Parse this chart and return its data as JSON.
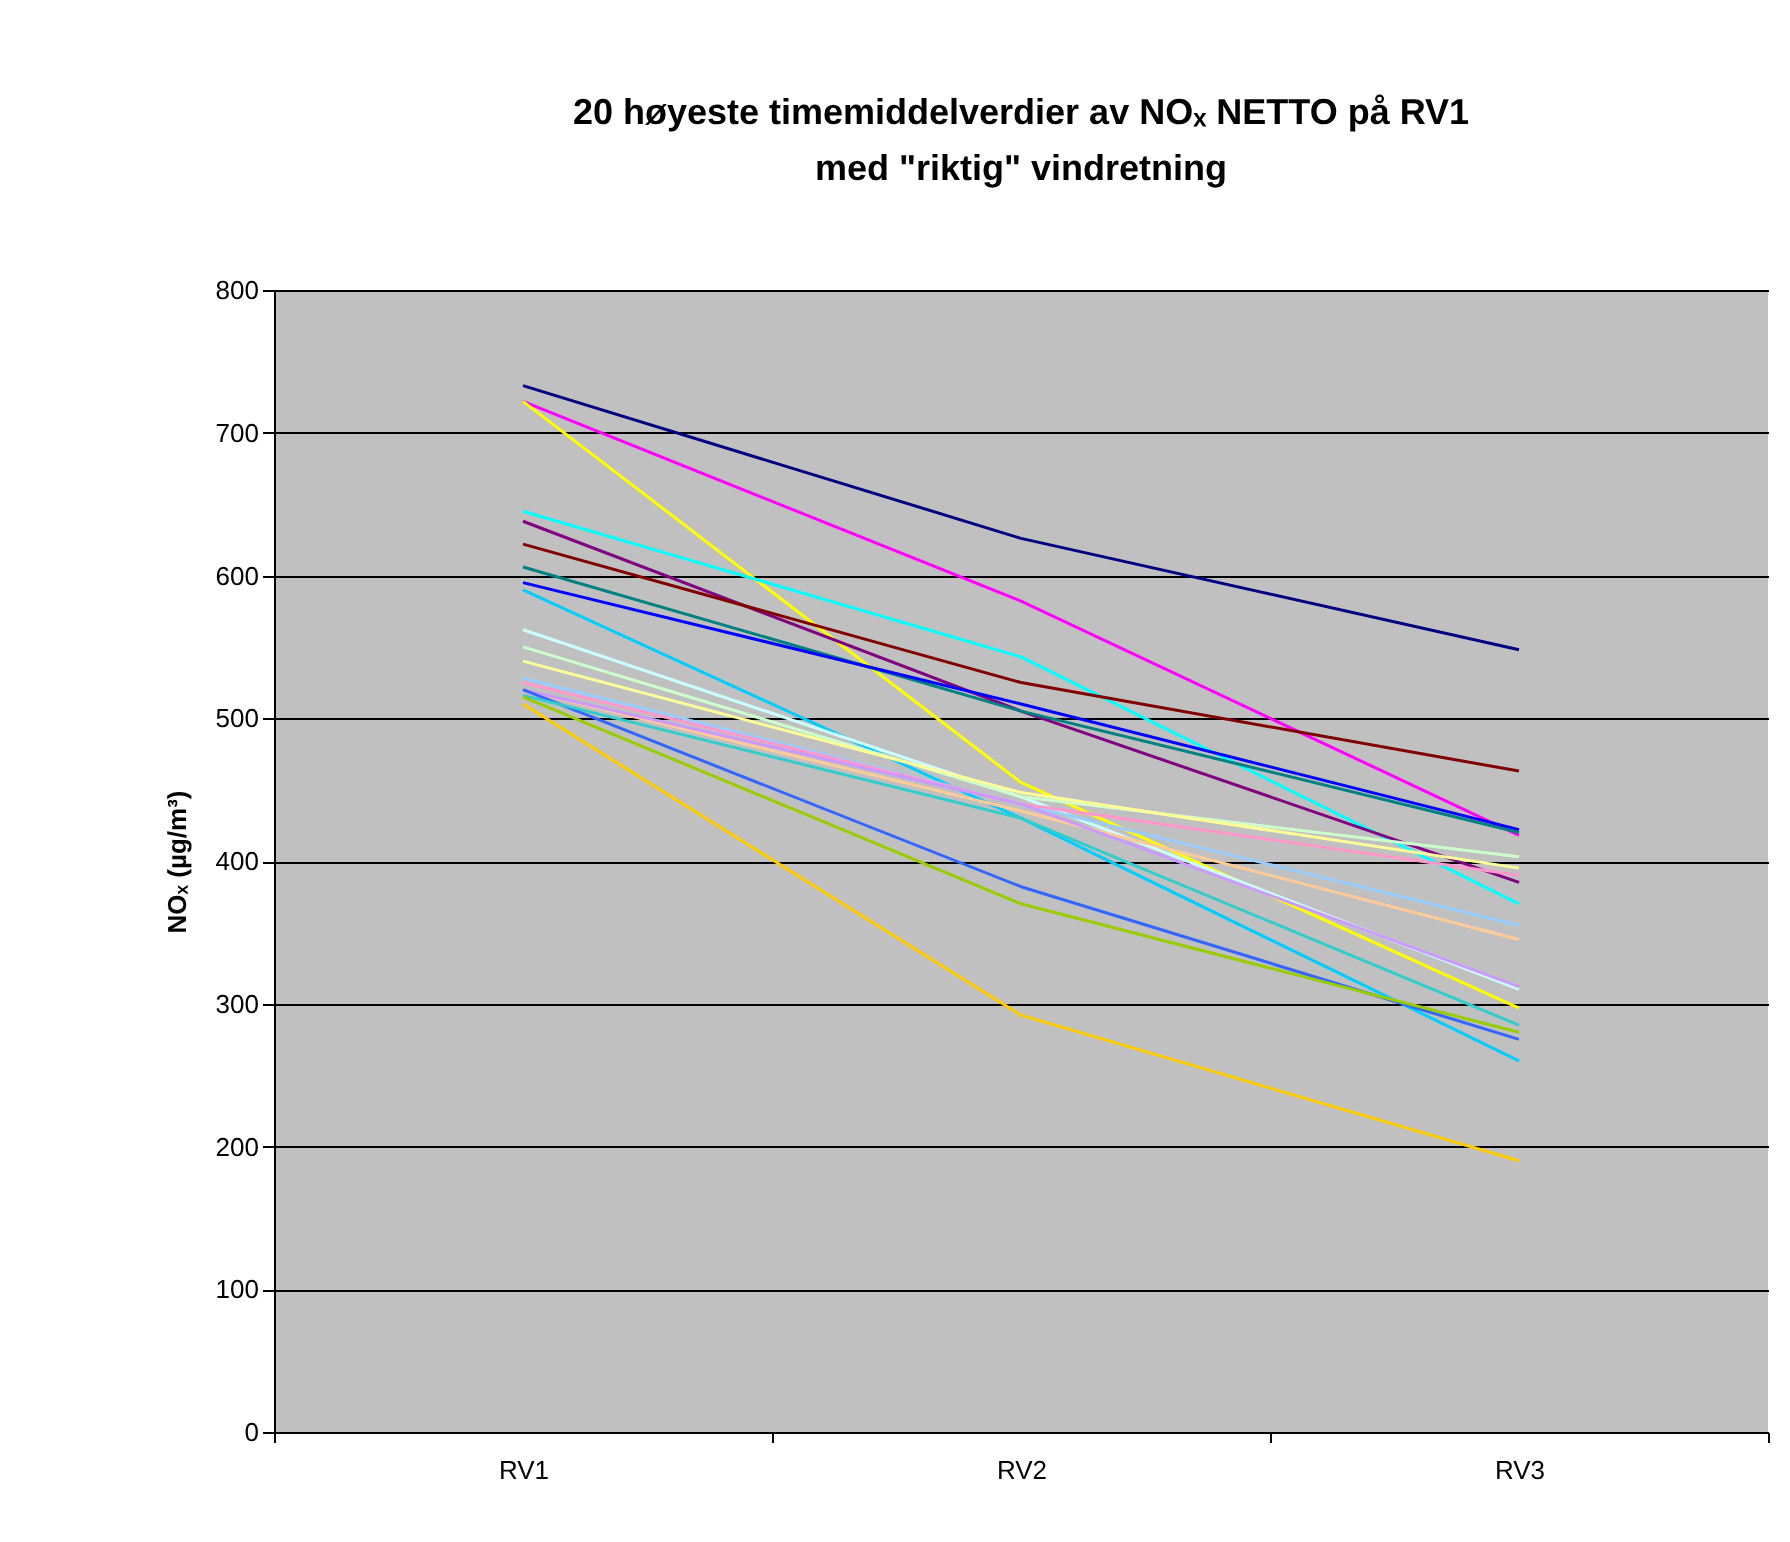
{
  "chart_data": {
    "type": "line",
    "title": "20 høyeste timemiddelverdier av NOₓ NETTO på RV1 med \"riktig\" vindretning",
    "ylabel": "NOₓ (µg/m³)",
    "categories": [
      "RV1",
      "RV2",
      "RV3"
    ],
    "ylim": [
      0,
      800
    ],
    "yticks": [
      0,
      100,
      200,
      300,
      400,
      500,
      600,
      700,
      800
    ],
    "grid": "y",
    "legend": false,
    "marker": "none",
    "line_style": "solid",
    "series": [
      {
        "color": "#000080",
        "values": [
          733,
          626,
          548
        ]
      },
      {
        "color": "#ff00ff",
        "values": [
          722,
          582,
          418
        ]
      },
      {
        "color": "#ffff00",
        "values": [
          722,
          455,
          297
        ]
      },
      {
        "color": "#00ffff",
        "values": [
          645,
          543,
          370
        ]
      },
      {
        "color": "#800080",
        "values": [
          638,
          505,
          385
        ]
      },
      {
        "color": "#800000",
        "values": [
          622,
          525,
          463
        ]
      },
      {
        "color": "#008080",
        "values": [
          606,
          505,
          420
        ]
      },
      {
        "color": "#0000ff",
        "values": [
          595,
          510,
          422
        ]
      },
      {
        "color": "#00ccff",
        "values": [
          590,
          430,
          260
        ]
      },
      {
        "color": "#ccffff",
        "values": [
          562,
          445,
          310
        ]
      },
      {
        "color": "#ccffcc",
        "values": [
          550,
          445,
          403
        ]
      },
      {
        "color": "#ffff99",
        "values": [
          540,
          448,
          395
        ]
      },
      {
        "color": "#99ccff",
        "values": [
          528,
          440,
          355
        ]
      },
      {
        "color": "#ff99cc",
        "values": [
          525,
          440,
          390
        ]
      },
      {
        "color": "#ffcc99",
        "values": [
          520,
          435,
          345
        ]
      },
      {
        "color": "#cc99ff",
        "values": [
          520,
          440,
          312
        ]
      },
      {
        "color": "#3366ff",
        "values": [
          520,
          382,
          275
        ]
      },
      {
        "color": "#33cccc",
        "values": [
          516,
          430,
          285
        ]
      },
      {
        "color": "#99cc00",
        "values": [
          515,
          370,
          280
        ]
      },
      {
        "color": "#ffcc00",
        "values": [
          510,
          292,
          190
        ]
      }
    ]
  }
}
